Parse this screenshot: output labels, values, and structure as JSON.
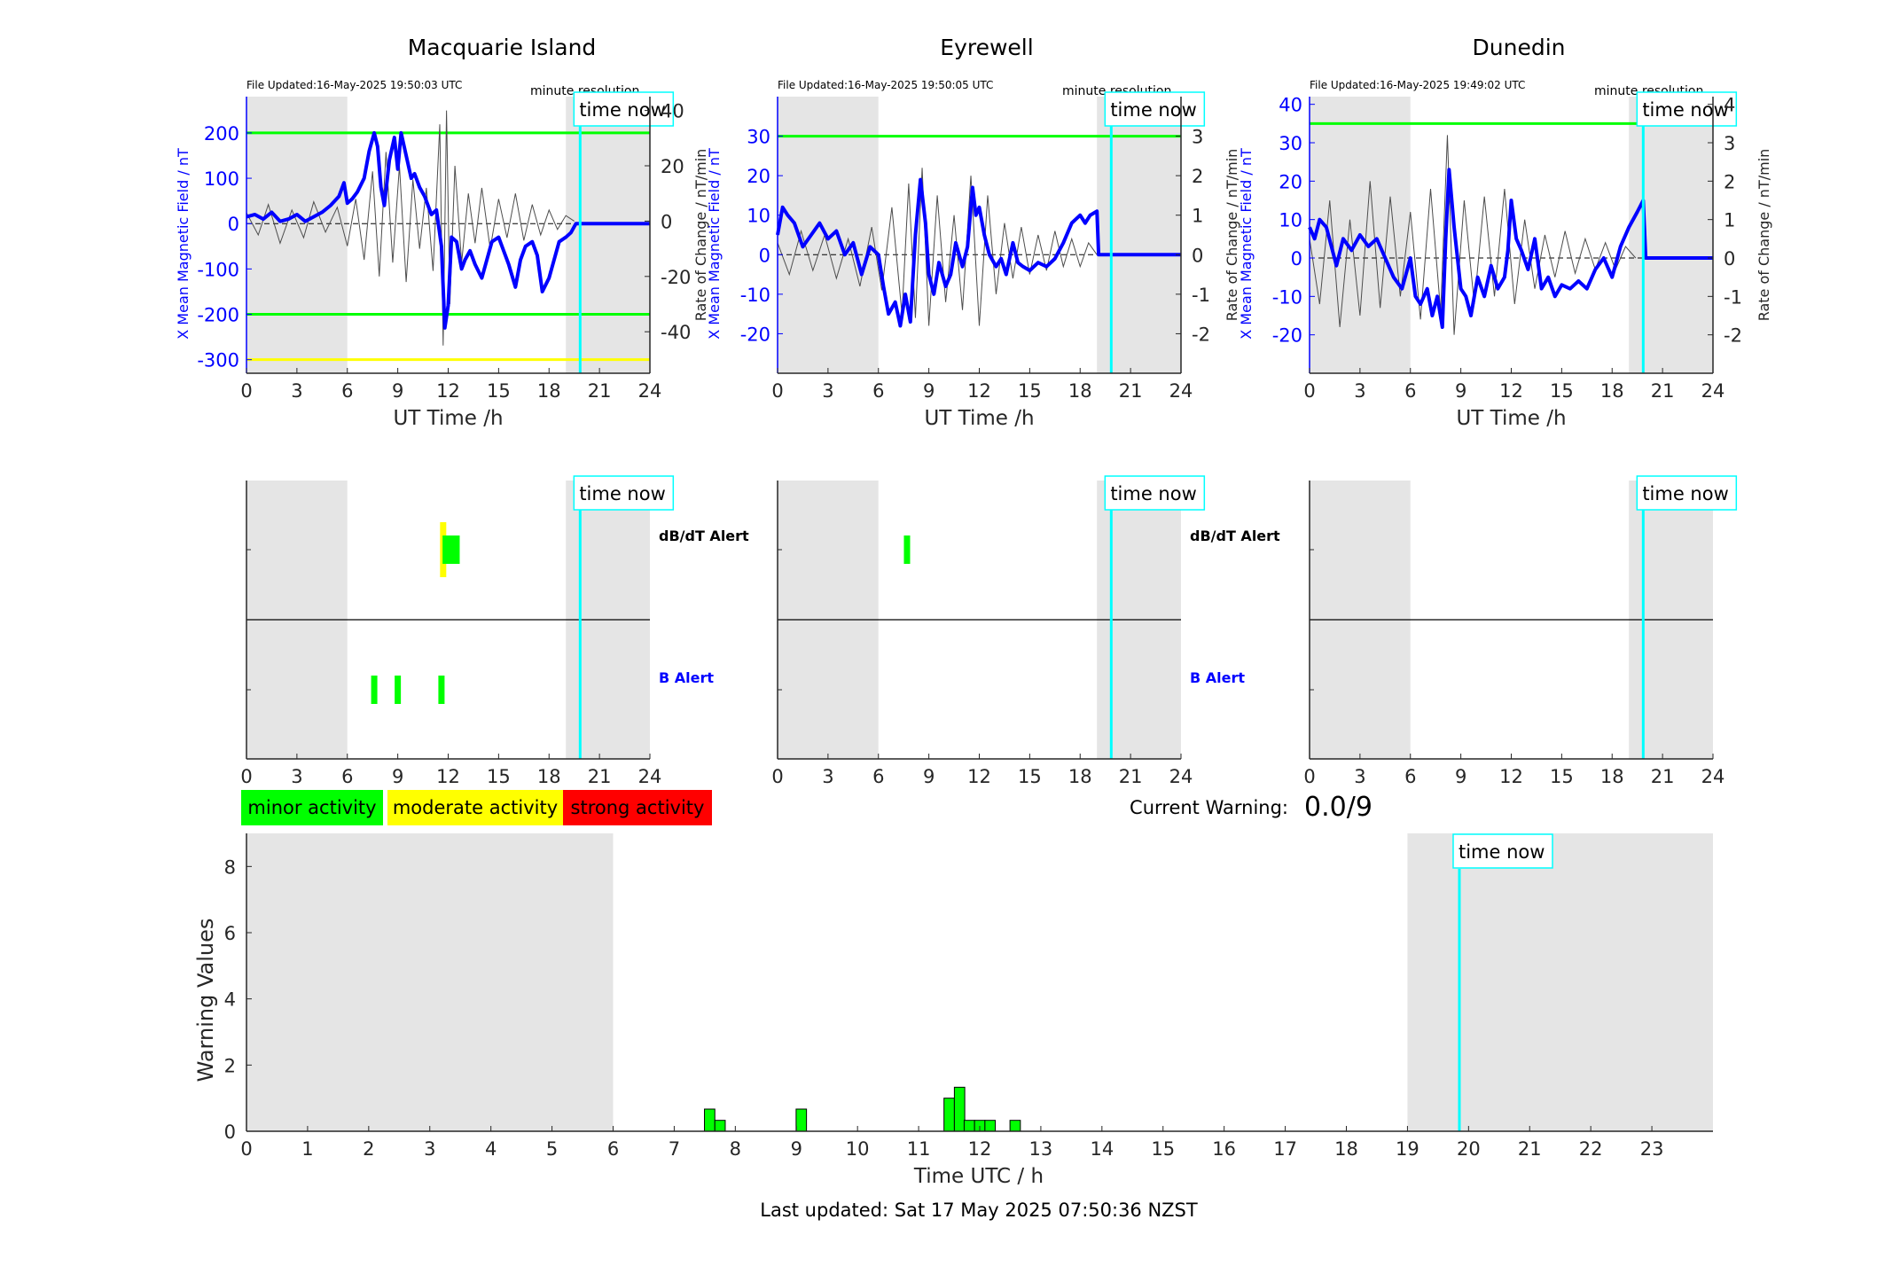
{
  "colors": {
    "field": "#0000ff",
    "rate": "#4d4d4d",
    "band_green": "#00ff00",
    "band_yellow": "#ffff00",
    "now_line": "#00ffff",
    "night_shade": "#e5e5e5",
    "minor": "#00ff00",
    "moderate": "#ffff00",
    "strong": "#ff0000",
    "axis": "#262626"
  },
  "labels": {
    "time_now": "time now",
    "minute_resolution": "minute resolution",
    "x_label_top": "UT Time /h",
    "y_label_left": "X Mean Magnetic Field / nT",
    "y_label_right": "Rate of Change / nT/min",
    "dbdt_alert": "dB/dT Alert",
    "b_alert": "B Alert",
    "current_warning_label": "Current Warning:",
    "current_warning_value": "0.0/9",
    "last_updated": "Last updated: Sat 17 May 2025 07:50:36 NZST"
  },
  "legend": [
    {
      "label": "minor activity",
      "color": "#00ff00"
    },
    {
      "label": "moderate activity",
      "color": "#ffff00"
    },
    {
      "label": "strong activity",
      "color": "#ff0000"
    }
  ],
  "chart_data": [
    {
      "type": "line",
      "title": "Macquarie Island",
      "file_updated": "File Updated:16-May-2025 19:50:03 UTC",
      "xlabel": "UT Time /h",
      "ylabel": "X Mean Magnetic Field / nT",
      "ylabel_right": "Rate of Change / nT/min",
      "xlim": [
        0,
        24
      ],
      "ylim": [
        -330,
        280
      ],
      "yticks": [
        -300,
        -200,
        -100,
        0,
        100,
        200
      ],
      "ylim_right": [
        -55,
        45
      ],
      "yticks_right": [
        -40,
        -20,
        0,
        20,
        40
      ],
      "xticks": [
        0,
        3,
        6,
        9,
        12,
        15,
        18,
        21,
        24
      ],
      "night_shading": [
        [
          0,
          6
        ],
        [
          19,
          24
        ]
      ],
      "time_now": 19.85,
      "thresholds": [
        {
          "value": 200,
          "color": "#00ff00"
        },
        {
          "value": -200,
          "color": "#00ff00"
        },
        {
          "value": -300,
          "color": "#ffff00"
        }
      ],
      "series": [
        {
          "x": [
            0,
            0.5,
            1,
            1.5,
            2,
            2.5,
            3,
            3.5,
            4,
            4.5,
            5,
            5.5,
            5.8,
            6,
            6.3,
            6.6,
            7,
            7.3,
            7.6,
            7.8,
            8,
            8.2,
            8.5,
            8.8,
            9,
            9.2,
            9.5,
            9.8,
            10,
            10.3,
            10.6,
            11,
            11.3,
            11.6,
            11.8,
            12,
            12.2,
            12.5,
            12.8,
            13,
            13.3,
            13.6,
            14,
            14.3,
            14.6,
            15,
            15.3,
            15.6,
            16,
            16.3,
            16.6,
            17,
            17.3,
            17.6,
            18,
            18.3,
            18.6,
            19,
            19.3,
            19.6,
            19.85,
            20,
            21,
            22,
            23,
            24
          ],
          "y": [
            15,
            20,
            10,
            25,
            5,
            10,
            20,
            5,
            15,
            25,
            40,
            60,
            90,
            45,
            55,
            70,
            100,
            160,
            200,
            170,
            80,
            40,
            140,
            190,
            120,
            200,
            150,
            100,
            110,
            80,
            60,
            20,
            30,
            -50,
            -230,
            -180,
            -30,
            -40,
            -100,
            -80,
            -60,
            -90,
            -120,
            -80,
            -40,
            -30,
            -60,
            -90,
            -140,
            -80,
            -50,
            -40,
            -70,
            -150,
            -120,
            -80,
            -40,
            -30,
            -20,
            0,
            0,
            0,
            0,
            0,
            0,
            0
          ]
        },
        {
          "name": "rate",
          "axis": "right",
          "x": [
            0,
            0.7,
            1.3,
            2,
            2.7,
            3.4,
            4,
            4.7,
            5.4,
            6,
            6.5,
            7,
            7.5,
            7.9,
            8.3,
            8.7,
            9.1,
            9.5,
            9.9,
            10.3,
            10.7,
            11.1,
            11.5,
            11.7,
            11.9,
            12.1,
            12.4,
            12.8,
            13.2,
            13.6,
            14,
            14.5,
            15,
            15.5,
            16,
            16.5,
            17,
            17.5,
            18,
            18.5,
            19,
            19.5
          ],
          "y": [
            3,
            -5,
            6,
            -8,
            4,
            -6,
            7,
            -4,
            5,
            -9,
            8,
            -14,
            18,
            -20,
            25,
            -15,
            20,
            -22,
            15,
            -10,
            12,
            -18,
            35,
            -45,
            40,
            -30,
            20,
            -15,
            10,
            -8,
            12,
            -10,
            8,
            -6,
            10,
            -7,
            6,
            -5,
            4,
            -3,
            2,
            0
          ]
        }
      ],
      "alerts": {
        "dbdt": [
          {
            "x": 11.7,
            "level": "moderate"
          },
          {
            "x": 11.85,
            "level": "minor"
          },
          {
            "x": 12.0,
            "level": "minor"
          },
          {
            "x": 12.15,
            "level": "minor"
          },
          {
            "x": 12.5,
            "level": "minor"
          }
        ],
        "b": [
          {
            "x": 7.6,
            "level": "minor"
          },
          {
            "x": 9.0,
            "level": "minor"
          },
          {
            "x": 11.6,
            "level": "minor"
          }
        ]
      }
    },
    {
      "type": "line",
      "title": "Eyrewell",
      "file_updated": "File Updated:16-May-2025 19:50:05 UTC",
      "xlabel": "UT Time /h",
      "ylabel": "X Mean Magnetic Field / nT",
      "ylabel_right": "Rate of Change / nT/min",
      "xlim": [
        0,
        24
      ],
      "ylim": [
        -30,
        40
      ],
      "yticks": [
        -20,
        -10,
        0,
        10,
        20,
        30
      ],
      "ylim_right": [
        -3,
        4
      ],
      "yticks_right": [
        -2,
        -1,
        0,
        1,
        2,
        3
      ],
      "xticks": [
        0,
        3,
        6,
        9,
        12,
        15,
        18,
        21,
        24
      ],
      "night_shading": [
        [
          0,
          6
        ],
        [
          19,
          24
        ]
      ],
      "time_now": 19.85,
      "thresholds": [
        {
          "value": 30,
          "color": "#00ff00"
        }
      ],
      "series": [
        {
          "x": [
            0,
            0.3,
            0.6,
            1,
            1.5,
            2,
            2.5,
            3,
            3.5,
            4,
            4.5,
            5,
            5.5,
            6,
            6.3,
            6.6,
            7,
            7.3,
            7.6,
            7.9,
            8.2,
            8.5,
            8.8,
            9,
            9.3,
            9.6,
            10,
            10.3,
            10.6,
            11,
            11.3,
            11.6,
            11.8,
            12,
            12.3,
            12.6,
            13,
            13.3,
            13.6,
            14,
            14.3,
            14.6,
            15,
            15.5,
            16,
            16.5,
            17,
            17.5,
            18,
            18.3,
            18.6,
            19,
            19.1,
            19.85,
            20,
            21,
            22,
            23,
            24
          ],
          "y": [
            5,
            12,
            10,
            8,
            2,
            5,
            8,
            4,
            6,
            0,
            3,
            -5,
            2,
            0,
            -8,
            -15,
            -12,
            -18,
            -10,
            -17,
            5,
            19,
            8,
            -5,
            -10,
            -2,
            -8,
            -5,
            3,
            -3,
            2,
            17,
            10,
            12,
            5,
            0,
            -3,
            -1,
            -5,
            3,
            -2,
            -3,
            -4,
            -2,
            -3,
            -1,
            3,
            8,
            10,
            8,
            10,
            11,
            0,
            0,
            0,
            0,
            0,
            0,
            0
          ]
        },
        {
          "name": "rate",
          "axis": "right",
          "x": [
            0,
            0.7,
            1.4,
            2.1,
            2.8,
            3.5,
            4.2,
            4.9,
            5.6,
            6.2,
            6.8,
            7.4,
            7.8,
            8.2,
            8.6,
            9,
            9.5,
            10,
            10.5,
            11,
            11.5,
            12,
            12.5,
            13,
            13.5,
            14,
            14.5,
            15,
            15.5,
            16,
            16.5,
            17,
            17.5,
            18,
            18.5,
            19
          ],
          "y": [
            0.3,
            -0.5,
            0.6,
            -0.4,
            0.5,
            -0.6,
            0.4,
            -0.8,
            0.7,
            -0.9,
            1.2,
            -1.5,
            1.8,
            -1.6,
            2.2,
            -1.8,
            1.5,
            -1.2,
            1.0,
            -1.4,
            2.0,
            -1.8,
            1.5,
            -1.0,
            0.8,
            -0.6,
            0.7,
            -0.5,
            0.5,
            -0.4,
            0.6,
            -0.3,
            0.4,
            -0.3,
            0.3,
            0
          ]
        }
      ],
      "alerts": {
        "dbdt": [
          {
            "x": 7.7,
            "level": "minor"
          }
        ],
        "b": []
      }
    },
    {
      "type": "line",
      "title": "Dunedin",
      "file_updated": "File Updated:16-May-2025 19:49:02 UTC",
      "xlabel": "UT Time /h",
      "ylabel": "X Mean Magnetic Field / nT",
      "ylabel_right": "Rate of Change / nT/min",
      "xlim": [
        0,
        24
      ],
      "ylim": [
        -30,
        42
      ],
      "yticks": [
        -20,
        -10,
        0,
        10,
        20,
        30,
        40
      ],
      "ylim_right": [
        -3,
        4.2
      ],
      "yticks_right": [
        -2,
        -1,
        0,
        1,
        2,
        3,
        4
      ],
      "xticks": [
        0,
        3,
        6,
        9,
        12,
        15,
        18,
        21,
        24
      ],
      "night_shading": [
        [
          0,
          6
        ],
        [
          19,
          24
        ]
      ],
      "time_now": 19.85,
      "thresholds": [
        {
          "value": 35,
          "color": "#00ff00"
        }
      ],
      "series": [
        {
          "x": [
            0,
            0.3,
            0.6,
            1,
            1.3,
            1.6,
            2,
            2.5,
            3,
            3.5,
            4,
            4.5,
            5,
            5.5,
            6,
            6.3,
            6.6,
            7,
            7.3,
            7.6,
            7.9,
            8.1,
            8.3,
            8.6,
            9,
            9.3,
            9.6,
            10,
            10.4,
            10.8,
            11.2,
            11.6,
            11.8,
            12,
            12.3,
            12.6,
            13,
            13.4,
            13.8,
            14.2,
            14.6,
            15,
            15.5,
            16,
            16.5,
            17,
            17.5,
            18,
            18.5,
            19,
            19.5,
            19.85,
            20,
            21,
            22,
            23,
            24
          ],
          "y": [
            8,
            5,
            10,
            8,
            3,
            -2,
            5,
            2,
            6,
            3,
            5,
            0,
            -5,
            -8,
            0,
            -10,
            -12,
            -8,
            -15,
            -10,
            -18,
            5,
            23,
            8,
            -8,
            -10,
            -15,
            -5,
            -10,
            -2,
            -8,
            -5,
            2,
            15,
            5,
            2,
            -3,
            5,
            -8,
            -5,
            -10,
            -7,
            -8,
            -6,
            -8,
            -3,
            0,
            -5,
            3,
            8,
            12,
            15,
            0,
            0,
            0,
            0,
            0
          ]
        },
        {
          "name": "rate",
          "axis": "right",
          "x": [
            0,
            0.6,
            1.2,
            1.8,
            2.4,
            3,
            3.6,
            4.2,
            4.8,
            5.4,
            6,
            6.6,
            7.2,
            7.8,
            8.2,
            8.6,
            9.2,
            9.8,
            10.4,
            11,
            11.6,
            12.2,
            12.8,
            13.4,
            14,
            14.6,
            15.2,
            15.8,
            16.4,
            17,
            17.6,
            18.2,
            18.8,
            19.4
          ],
          "y": [
            0.5,
            -1.2,
            1.5,
            -1.8,
            1.0,
            -1.5,
            2.0,
            -1.3,
            1.6,
            -1.0,
            1.2,
            -1.6,
            1.8,
            -1.4,
            3.2,
            -2.0,
            1.5,
            -1.2,
            1.6,
            -1.0,
            1.8,
            -1.2,
            1.0,
            -0.8,
            0.6,
            -0.5,
            0.7,
            -0.4,
            0.5,
            -0.3,
            0.4,
            -0.3,
            0.3,
            0
          ]
        }
      ],
      "alerts": {
        "dbdt": [],
        "b": []
      }
    },
    {
      "type": "bar",
      "xlabel": "Time UTC / h",
      "ylabel": "Warning Values",
      "xlim": [
        0,
        24
      ],
      "ylim": [
        0,
        9
      ],
      "yticks": [
        0,
        2,
        4,
        6,
        8
      ],
      "xticks": [
        0,
        1,
        2,
        3,
        4,
        5,
        6,
        7,
        8,
        9,
        10,
        11,
        12,
        13,
        14,
        15,
        16,
        17,
        18,
        19,
        20,
        21,
        22,
        23
      ],
      "night_shading": [
        [
          0,
          6
        ],
        [
          19,
          24
        ]
      ],
      "time_now": 19.85,
      "bar_width": 0.17,
      "x": [
        7.58,
        7.75,
        9.08,
        11.5,
        11.67,
        11.83,
        12.0,
        12.17,
        12.58
      ],
      "values": [
        0.67,
        0.33,
        0.67,
        1.0,
        1.33,
        0.33,
        0.33,
        0.33,
        0.33
      ]
    }
  ]
}
